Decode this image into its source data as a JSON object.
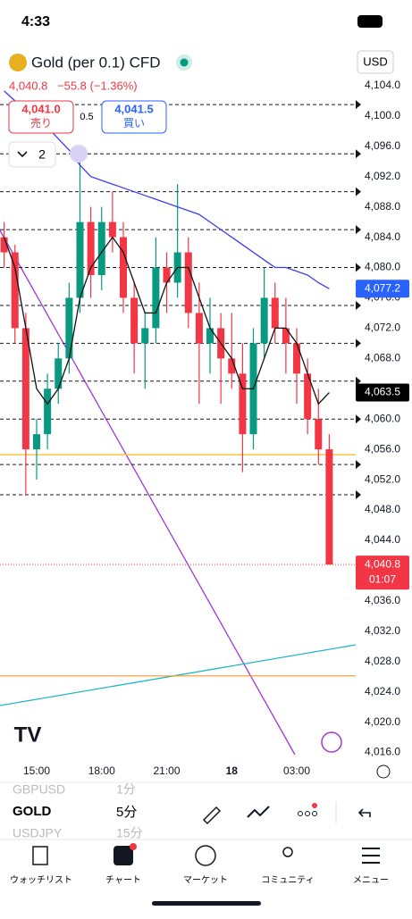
{
  "status_bar": {
    "time": "4:33"
  },
  "header": {
    "symbol": "Gold (per 0.1) CFD",
    "currency": "USD",
    "last": "4,040.8",
    "change": "−55.8 (−1.36%)",
    "sell_price": "4,041.0",
    "sell_label": "売り",
    "spread": "0.5",
    "buy_price": "4,041.5",
    "buy_label": "買い",
    "interval_count": "2"
  },
  "chart_data": {
    "type": "candlestick",
    "x": [
      13.5,
      14,
      14.5,
      15,
      15.5,
      16,
      16.5,
      17,
      17.5,
      18,
      18.5,
      19,
      19.5,
      20,
      20.5,
      21,
      21.5,
      22,
      22.5,
      23,
      23.5,
      24,
      24.5,
      25,
      25.5,
      26,
      26.5,
      27,
      27.5,
      28,
      28.5
    ],
    "open": [
      4084,
      4082,
      4072,
      4056,
      4058,
      4064,
      4068,
      4076,
      4086,
      4079,
      4086,
      4084,
      4076,
      4070,
      4072,
      4080,
      4078,
      4082,
      4074,
      4070,
      4072,
      4068,
      4066,
      4058,
      4070,
      4076,
      4072,
      4070,
      4066,
      4060,
      4056
    ],
    "high": [
      4086,
      4083,
      4074,
      4060,
      4066,
      4070,
      4078,
      4095,
      4088,
      4088,
      4090,
      4086,
      4078,
      4074,
      4084,
      4082,
      4091,
      4084,
      4078,
      4076,
      4074,
      4074,
      4070,
      4072,
      4080,
      4078,
      4076,
      4072,
      4068,
      4064,
      4058
    ],
    "low": [
      4080,
      4070,
      4050,
      4052,
      4056,
      4062,
      4066,
      4074,
      4076,
      4077,
      4082,
      4074,
      4066,
      4064,
      4070,
      4074,
      4076,
      4072,
      4062,
      4066,
      4062,
      4064,
      4053,
      4056,
      4068,
      4070,
      4066,
      4062,
      4058,
      4054,
      4040.8
    ],
    "close": [
      4082,
      4072,
      4056,
      4058,
      4064,
      4068,
      4076,
      4086,
      4079,
      4086,
      4084,
      4076,
      4070,
      4072,
      4080,
      4078,
      4082,
      4074,
      4070,
      4072,
      4068,
      4066,
      4058,
      4070,
      4076,
      4072,
      4070,
      4066,
      4060,
      4056,
      4040.8
    ],
    "up_color": "#089981",
    "down_color": "#f23645",
    "series": [
      {
        "color": "#3d3df0",
        "values": [
          4103.3,
          4102,
          4100.5,
          4099.5,
          4098.5,
          4097,
          4095.5,
          4093.5,
          4092,
          4091.5,
          4091,
          4090.5,
          4090,
          4089.5,
          4089,
          4088.5,
          4088,
          4087.5,
          4087,
          4086,
          4085,
          4084,
          4083,
          4082,
          4081,
          4080,
          4080,
          4079.5,
          4079,
          4078,
          4077.2
        ]
      },
      {
        "color": "#111111",
        "values": [
          4084,
          4080,
          4072,
          4064,
          4062,
          4064,
          4068,
          4076,
          4080,
          4082,
          4084,
          4082,
          4078,
          4074,
          4074,
          4078,
          4080,
          4080,
          4076,
          4072,
          4070,
          4068,
          4064,
          4064,
          4068,
          4072,
          4072,
          4070,
          4066,
          4062,
          4063.5
        ]
      }
    ],
    "levels": [
      4101.5,
      4095,
      4090,
      4085,
      4080,
      4075,
      4070,
      4065,
      4060,
      4054,
      4050
    ],
    "yellow_level": 4055.3,
    "orange_level": 4026.1,
    "xlim": [
      13.31,
      29.72
    ],
    "ylim": [
      4015,
      4110
    ],
    "yticks": [
      {
        "value": 4104,
        "label": "4,104.0"
      },
      {
        "value": 4100,
        "label": "4,100.0"
      },
      {
        "value": 4096,
        "label": "4,096.0"
      },
      {
        "value": 4092,
        "label": "4,092.0"
      },
      {
        "value": 4088,
        "label": "4,088.0"
      },
      {
        "value": 4084,
        "label": "4,084.0"
      },
      {
        "value": 4080,
        "label": "4,080.0"
      },
      {
        "value": 4076,
        "label": "4,076.0"
      },
      {
        "value": 4072,
        "label": "4,072.0"
      },
      {
        "value": 4068,
        "label": "4,068.0"
      },
      {
        "value": 4064,
        "label": "4,064.0"
      },
      {
        "value": 4060,
        "label": "4,060.0"
      },
      {
        "value": 4056,
        "label": "4,056.0"
      },
      {
        "value": 4052,
        "label": "4,052.0"
      },
      {
        "value": 4048,
        "label": "4,048.0"
      },
      {
        "value": 4044,
        "label": "4,044.0"
      },
      {
        "value": 4040,
        "label": "4,040.0"
      },
      {
        "value": 4036,
        "label": "4,036.0"
      },
      {
        "value": 4032,
        "label": "4,032.0"
      },
      {
        "value": 4028,
        "label": "4,028.0"
      },
      {
        "value": 4024,
        "label": "4,024.0"
      },
      {
        "value": 4020,
        "label": "4,020.0"
      },
      {
        "value": 4016,
        "label": "4,016.0"
      }
    ],
    "xticks": [
      {
        "value": 15,
        "label": "15:00"
      },
      {
        "value": 18,
        "label": "18:00"
      },
      {
        "value": 21,
        "label": "21:00"
      },
      {
        "value": 24,
        "label": "18"
      },
      {
        "value": 27,
        "label": "03:00"
      }
    ],
    "price_badges": [
      {
        "value": 4077.2,
        "label": "4,077.2",
        "color": "#2962ff"
      },
      {
        "value": 4063.5,
        "label": "4,063.5",
        "color": "#000000"
      },
      {
        "value": 4040.8,
        "label": "4,040.8",
        "color": "#f23645",
        "countdown": "01:07"
      }
    ]
  },
  "watchlist": {
    "symbols": [
      "GBPUSD",
      "GOLD",
      "USDJPY"
    ],
    "intervals": [
      "1分",
      "5分",
      "15分"
    ]
  },
  "nav": [
    "ウォッチリスト",
    "チャート",
    "マーケット",
    "コミュニティ",
    "メニュー"
  ]
}
